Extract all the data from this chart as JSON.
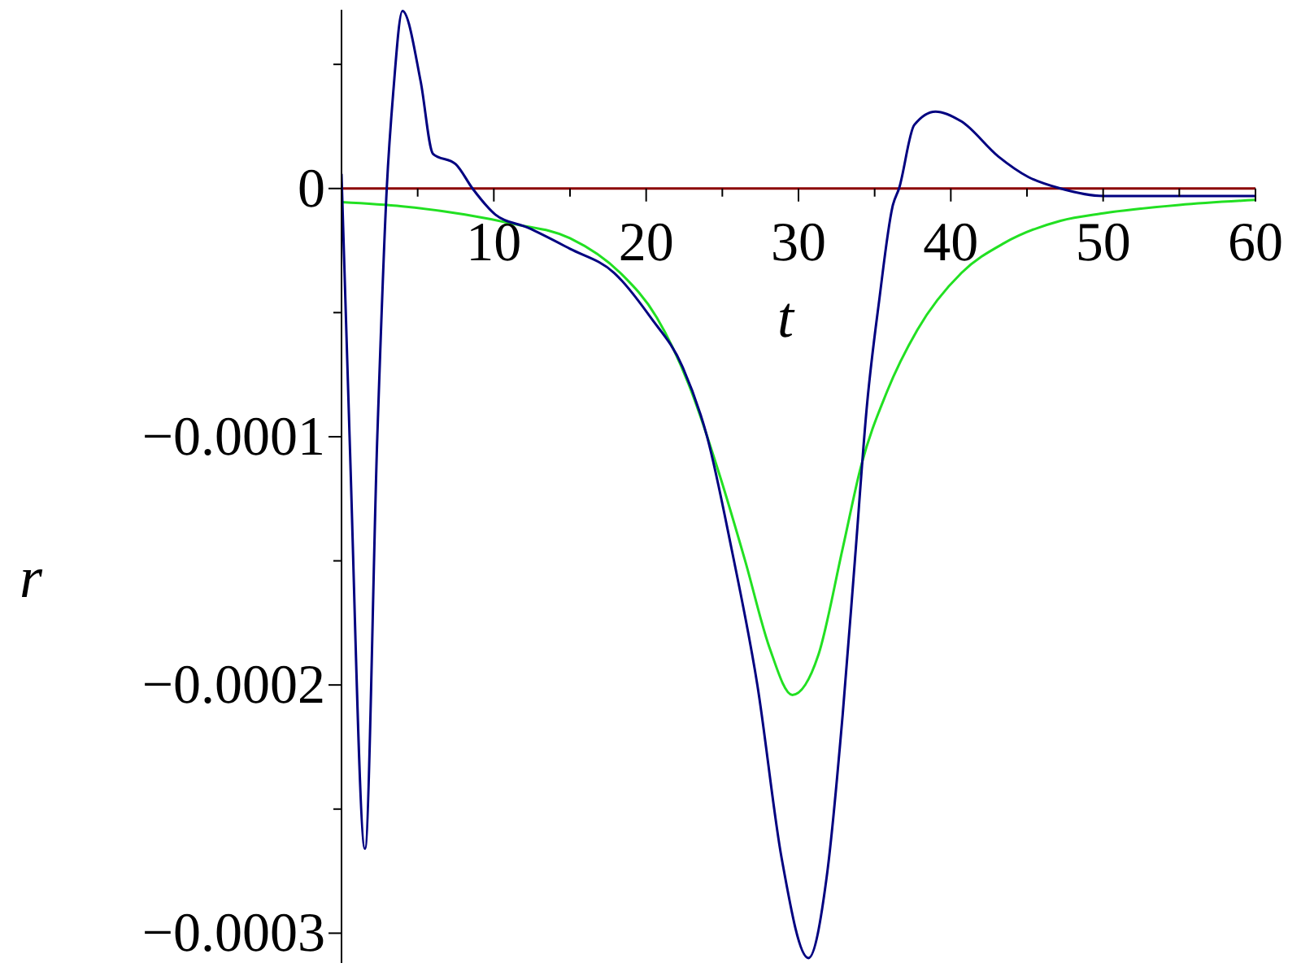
{
  "chart_data": {
    "type": "line",
    "xlabel": "t",
    "ylabel": "r",
    "xlim": [
      0,
      60
    ],
    "ylim": [
      -0.000312,
      7.2e-05
    ],
    "xticks": [
      {
        "value": 5,
        "label": null
      },
      10,
      {
        "value": 15,
        "label": null
      },
      20,
      {
        "value": 25,
        "label": null
      },
      30,
      {
        "value": 35,
        "label": null
      },
      40,
      {
        "value": 45,
        "label": null
      },
      50,
      {
        "value": 55,
        "label": null
      },
      60
    ],
    "yticks": [
      {
        "value": -0.0003,
        "label": "−0.0003"
      },
      {
        "value": -0.00025,
        "label": null
      },
      {
        "value": -0.0002,
        "label": "−0.0002"
      },
      {
        "value": -0.00015,
        "label": null
      },
      {
        "value": -0.0001,
        "label": "−0.0001"
      },
      {
        "value": -5e-05,
        "label": null
      },
      0,
      {
        "value": 5e-05,
        "label": null
      }
    ],
    "grid": false,
    "marker": "none",
    "line_style": "solid",
    "series": [
      {
        "color": "#8b0000",
        "x": [
          0,
          60
        ],
        "values": [
          0,
          0
        ]
      },
      {
        "color": "#22e022",
        "x": [
          0,
          4,
          8.1,
          11.3,
          15,
          18.3,
          20.7,
          22.8,
          24.8,
          26.5,
          28.1,
          29.6,
          31.3,
          32.9,
          34.1,
          35.8,
          37.8,
          40.7,
          43.5,
          47.2,
          50,
          55,
          60
        ],
        "values": [
          -5.5e-06,
          -7.2e-06,
          -1.05e-05,
          -1.43e-05,
          -2e-05,
          -3.4e-05,
          -5.2e-05,
          -7.9e-05,
          -0.000115,
          -0.00015,
          -0.000185,
          -0.000204,
          -0.000188,
          -0.000145,
          -0.000112,
          -8.2e-05,
          -5.7e-05,
          -3.4e-05,
          -2.2e-05,
          -1.3e-05,
          -1e-05,
          -6.6e-06,
          -4.6e-06
        ]
      },
      {
        "color": "#000080",
        "x": [
          0,
          0.53,
          1.54,
          2.35,
          2.97,
          3.4,
          4.0,
          5.2,
          6.0,
          7.5,
          8.6,
          10.1,
          12.2,
          15.0,
          17.9,
          20.3,
          22.4,
          24.0,
          25.6,
          27.3,
          28.9,
          30.65,
          31.9,
          32.9,
          33.7,
          34.5,
          35.3,
          36.2,
          36.6,
          37.6,
          39.0,
          40.7,
          43.1,
          45.1,
          47.2,
          50,
          60
        ],
        "values": [
          5.9e-06,
          -0.0001,
          -0.000266,
          -0.0001,
          0,
          3.9e-05,
          7.15e-05,
          4.3e-05,
          1.4e-05,
          9.8e-06,
          0,
          -1.05e-05,
          -1.57e-05,
          -2.43e-05,
          -3.4e-05,
          -5.2e-05,
          -7.2e-05,
          -0.0001,
          -0.000145,
          -0.0002,
          -0.00027,
          -0.00031,
          -0.000275,
          -0.000212,
          -0.00015,
          -8.7e-05,
          -4.5e-05,
          -6.6e-06,
          0,
          2.56e-05,
          3.1e-05,
          2.7e-05,
          1.3e-05,
          4.6e-06,
          0,
          -3e-06,
          -3e-06
        ]
      }
    ]
  }
}
